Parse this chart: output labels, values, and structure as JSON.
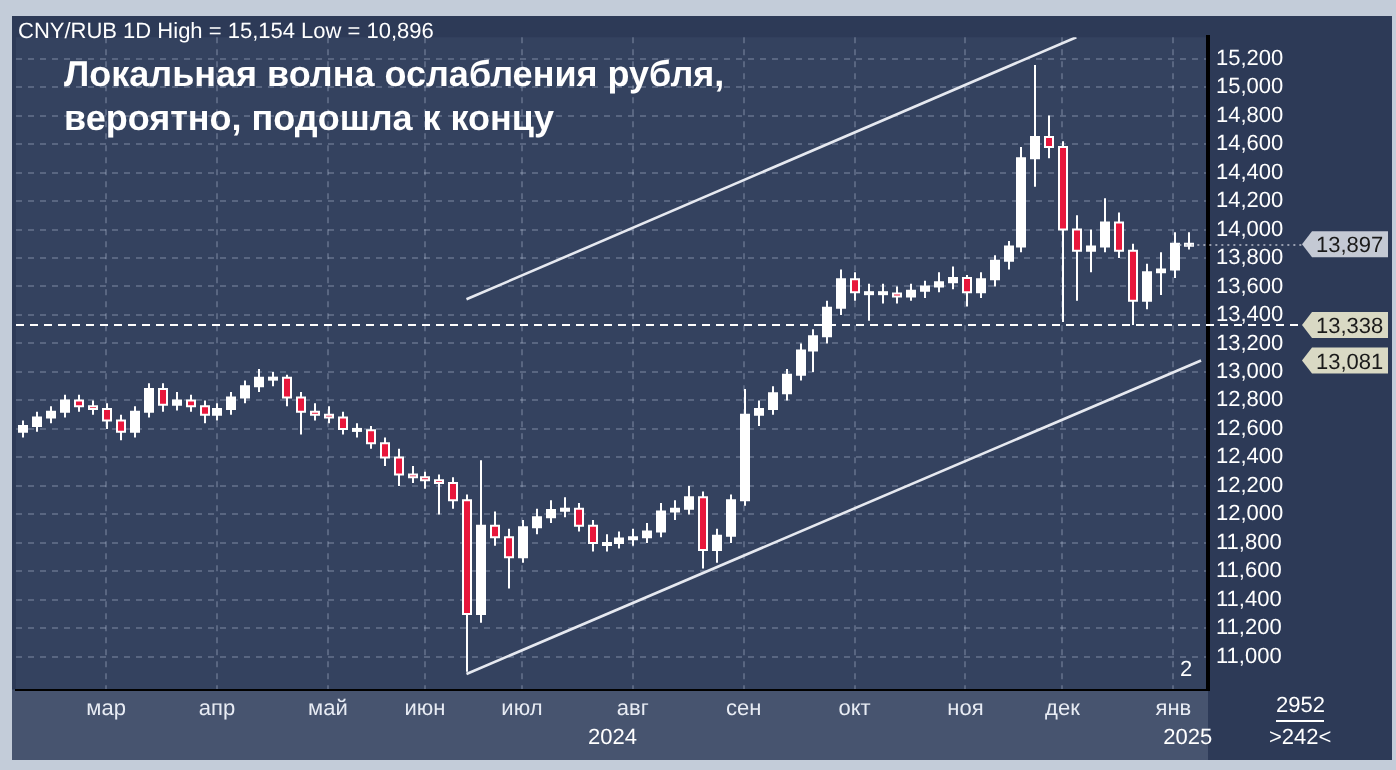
{
  "chart_data": {
    "type": "candlestick",
    "title": "Локальная волна ослабления рубля, вероятно, подошла к концу",
    "subtitle": "CNY/RUB 1D High = 15,154 Low = 10,896",
    "categories": [
      null,
      null,
      null,
      null,
      null,
      null,
      "мар",
      null,
      null,
      null,
      null,
      null,
      null,
      null,
      "апр",
      null,
      null,
      null,
      null,
      null,
      null,
      null,
      "май",
      null,
      null,
      null,
      null,
      null,
      null,
      "июн",
      null,
      null,
      null,
      null,
      null,
      null,
      "июл",
      null,
      null,
      null,
      null,
      null,
      null,
      null,
      "авг",
      null,
      null,
      null,
      null,
      null,
      null,
      null,
      "сен",
      null,
      null,
      null,
      null,
      null,
      null,
      null,
      "окт",
      null,
      null,
      null,
      null,
      null,
      null,
      null,
      "ноя",
      null,
      null,
      null,
      null,
      null,
      null,
      "дек",
      null,
      null,
      null,
      null,
      null,
      null,
      null,
      "янв",
      null,
      null
    ],
    "ohlc": [
      [
        12580,
        12660,
        12540,
        12620
      ],
      [
        12620,
        12720,
        12580,
        12680
      ],
      [
        12680,
        12760,
        12640,
        12720
      ],
      [
        12720,
        12840,
        12680,
        12800
      ],
      [
        12800,
        12840,
        12720,
        12760
      ],
      [
        12760,
        12800,
        12700,
        12740
      ],
      [
        12740,
        12780,
        12600,
        12660
      ],
      [
        12660,
        12700,
        12520,
        12580
      ],
      [
        12580,
        12760,
        12540,
        12720
      ],
      [
        12720,
        12920,
        12680,
        12880
      ],
      [
        12880,
        12920,
        12720,
        12770
      ],
      [
        12770,
        12860,
        12730,
        12800
      ],
      [
        12800,
        12840,
        12720,
        12760
      ],
      [
        12760,
        12800,
        12640,
        12700
      ],
      [
        12700,
        12780,
        12660,
        12740
      ],
      [
        12740,
        12860,
        12700,
        12820
      ],
      [
        12820,
        12940,
        12780,
        12900
      ],
      [
        12900,
        13020,
        12860,
        12960
      ],
      [
        12960,
        13000,
        12900,
        12960
      ],
      [
        12960,
        12980,
        12760,
        12820
      ],
      [
        12820,
        12860,
        12560,
        12720
      ],
      [
        12720,
        12780,
        12660,
        12700
      ],
      [
        12700,
        12760,
        12640,
        12680
      ],
      [
        12680,
        12720,
        12560,
        12600
      ],
      [
        12600,
        12640,
        12540,
        12590
      ],
      [
        12590,
        12620,
        12460,
        12500
      ],
      [
        12500,
        12540,
        12340,
        12400
      ],
      [
        12400,
        12460,
        12200,
        12280
      ],
      [
        12280,
        12340,
        12220,
        12260
      ],
      [
        12260,
        12300,
        12180,
        12240
      ],
      [
        12240,
        12280,
        12000,
        12220
      ],
      [
        12220,
        12260,
        12040,
        12100
      ],
      [
        12100,
        12140,
        10896,
        11300
      ],
      [
        11300,
        12380,
        11240,
        11920
      ],
      [
        11920,
        12020,
        11780,
        11840
      ],
      [
        11840,
        11900,
        11480,
        11700
      ],
      [
        11700,
        11960,
        11660,
        11910
      ],
      [
        11910,
        12040,
        11860,
        11980
      ],
      [
        11980,
        12100,
        11940,
        12030
      ],
      [
        12030,
        12120,
        11980,
        12040
      ],
      [
        12040,
        12080,
        11880,
        11920
      ],
      [
        11920,
        11960,
        11740,
        11800
      ],
      [
        11800,
        11860,
        11740,
        11800
      ],
      [
        11800,
        11880,
        11760,
        11830
      ],
      [
        11830,
        11900,
        11780,
        11840
      ],
      [
        11840,
        11940,
        11800,
        11880
      ],
      [
        11880,
        12080,
        11840,
        12020
      ],
      [
        12020,
        12100,
        11960,
        12040
      ],
      [
        12040,
        12200,
        12000,
        12120
      ],
      [
        12120,
        12160,
        11620,
        11750
      ],
      [
        11750,
        11900,
        11660,
        11850
      ],
      [
        11850,
        12140,
        11800,
        12100
      ],
      [
        12100,
        12880,
        12060,
        12700
      ],
      [
        12700,
        12800,
        12620,
        12740
      ],
      [
        12740,
        12900,
        12700,
        12850
      ],
      [
        12850,
        13020,
        12800,
        12980
      ],
      [
        12980,
        13200,
        12940,
        13150
      ],
      [
        13150,
        13300,
        13000,
        13250
      ],
      [
        13250,
        13500,
        13200,
        13450
      ],
      [
        13450,
        13720,
        13400,
        13650
      ],
      [
        13650,
        13700,
        13500,
        13560
      ],
      [
        13560,
        13620,
        13360,
        13560
      ],
      [
        13560,
        13620,
        13480,
        13550
      ],
      [
        13550,
        13600,
        13480,
        13530
      ],
      [
        13530,
        13620,
        13500,
        13570
      ],
      [
        13570,
        13640,
        13520,
        13600
      ],
      [
        13600,
        13700,
        13560,
        13630
      ],
      [
        13630,
        13740,
        13580,
        13660
      ],
      [
        13660,
        13680,
        13460,
        13560
      ],
      [
        13560,
        13700,
        13520,
        13650
      ],
      [
        13650,
        13820,
        13600,
        13780
      ],
      [
        13780,
        13920,
        13720,
        13880
      ],
      [
        13880,
        14580,
        13840,
        14500
      ],
      [
        14500,
        15154,
        14300,
        14650
      ],
      [
        14650,
        14800,
        14500,
        14580
      ],
      [
        14580,
        14620,
        13350,
        14000
      ],
      [
        14000,
        14100,
        13500,
        13850
      ],
      [
        13850,
        14000,
        13700,
        13880
      ],
      [
        13880,
        14220,
        13840,
        14050
      ],
      [
        14050,
        14120,
        13800,
        13850
      ],
      [
        13850,
        13900,
        13330,
        13500
      ],
      [
        13500,
        13760,
        13440,
        13700
      ],
      [
        13700,
        13840,
        13540,
        13720
      ],
      [
        13720,
        13980,
        13660,
        13900
      ],
      [
        13900,
        13980,
        13860,
        13897
      ],
      null
    ],
    "series": [
      {
        "type": "line",
        "color": "#e6e9f0",
        "values": [
          null,
          null,
          null,
          null,
          null,
          null,
          null,
          null,
          null,
          null,
          null,
          null,
          null,
          null,
          null,
          null,
          null,
          null,
          null,
          null,
          null,
          null,
          null,
          null,
          null,
          null,
          null,
          null,
          null,
          null,
          null,
          null,
          13510,
          null,
          null,
          null,
          null,
          null,
          null,
          null,
          null,
          null,
          null,
          null,
          null,
          null,
          null,
          null,
          null,
          null,
          null,
          null,
          null,
          null,
          null,
          null,
          null,
          null,
          null,
          null,
          null,
          null,
          null,
          null,
          null,
          null,
          null,
          null,
          null,
          null,
          null,
          null,
          null,
          null,
          null,
          null,
          15350,
          null,
          null,
          null,
          null,
          null,
          null,
          null,
          null,
          null
        ]
      },
      {
        "type": "line",
        "color": "#e6e9f0",
        "values": [
          null,
          null,
          null,
          null,
          null,
          null,
          null,
          null,
          null,
          null,
          null,
          null,
          null,
          null,
          null,
          null,
          null,
          null,
          null,
          null,
          null,
          null,
          null,
          null,
          null,
          null,
          null,
          null,
          null,
          null,
          null,
          null,
          10880,
          null,
          null,
          null,
          null,
          null,
          null,
          null,
          null,
          null,
          null,
          null,
          null,
          null,
          null,
          null,
          null,
          null,
          null,
          null,
          null,
          null,
          null,
          null,
          null,
          null,
          null,
          null,
          null,
          null,
          null,
          null,
          null,
          null,
          null,
          null,
          null,
          null,
          null,
          null,
          null,
          null,
          null,
          null,
          null,
          null,
          null,
          null,
          null,
          null,
          null,
          null,
          null,
          13080
        ]
      }
    ],
    "ylim": [
      10770,
      15350
    ],
    "yticks": [
      {
        "value": 11000,
        "label": "11,000"
      },
      {
        "value": 11200,
        "label": "11,200"
      },
      {
        "value": 11400,
        "label": "11,400"
      },
      {
        "value": 11600,
        "label": "11,600"
      },
      {
        "value": 11800,
        "label": "11,800"
      },
      {
        "value": 12000,
        "label": "12,000"
      },
      {
        "value": 12200,
        "label": "12,200"
      },
      {
        "value": 12400,
        "label": "12,400"
      },
      {
        "value": 12600,
        "label": "12,600"
      },
      {
        "value": 12800,
        "label": "12,800"
      },
      {
        "value": 13000,
        "label": "13,000"
      },
      {
        "value": 13200,
        "label": "13,200"
      },
      {
        "value": 13400,
        "label": "13,400"
      },
      {
        "value": 13600,
        "label": "13,600"
      },
      {
        "value": 13800,
        "label": "13,800"
      },
      {
        "value": 14000,
        "label": "14,000"
      },
      {
        "value": 14200,
        "label": "14,200"
      },
      {
        "value": 14400,
        "label": "14,400"
      },
      {
        "value": 14600,
        "label": "14,600"
      },
      {
        "value": 14800,
        "label": "14,800"
      },
      {
        "value": 15000,
        "label": "15,000"
      },
      {
        "value": 15200,
        "label": "15,200"
      }
    ],
    "ref_lines": [
      {
        "axis": "y",
        "value": 13338,
        "label": "13,338",
        "color": "#ffffff",
        "line_style": "dashed"
      }
    ],
    "annotations": [
      {
        "text": "13,897",
        "x": "янв",
        "y": 13897
      },
      "13,081",
      "2024",
      "2025",
      "2",
      "2952",
      ">242<"
    ],
    "grid": true,
    "legend": false
  }
}
